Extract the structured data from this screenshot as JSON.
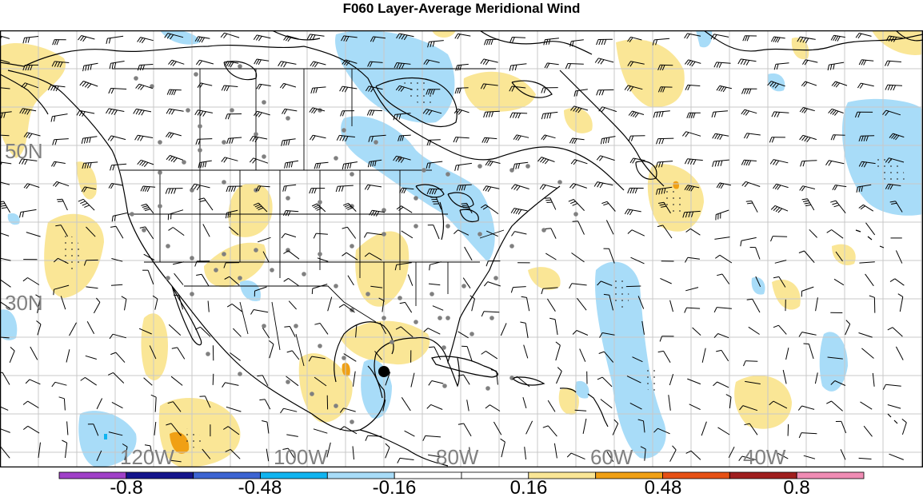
{
  "title": "F060 Layer-Average Meridional Wind",
  "map": {
    "lat_labels": [
      "50N",
      "30N"
    ],
    "lon_labels": [
      "120W",
      "100W",
      "80W",
      "60W",
      "40W"
    ]
  },
  "colorbar": {
    "labels": [
      "-0.8",
      "-0.48",
      "-0.16",
      "0.16",
      "0.48",
      "0.8"
    ],
    "colors": [
      "#a040c8",
      "#14148c",
      "#3c64d2",
      "#10b4f0",
      "#a8dcf8",
      "#ffffff",
      "#ffffff",
      "#fae696",
      "#f0a014",
      "#e65014",
      "#a01e1e",
      "#f08cb4"
    ]
  },
  "colors": {
    "positive_fill": "#fae696",
    "negative_fill": "#a8dcf8",
    "strong_positive": "#f0a014",
    "strong_negative": "#10b4f0",
    "grid": "#c8c8c8",
    "coast": "#000000",
    "station": "#808080"
  }
}
